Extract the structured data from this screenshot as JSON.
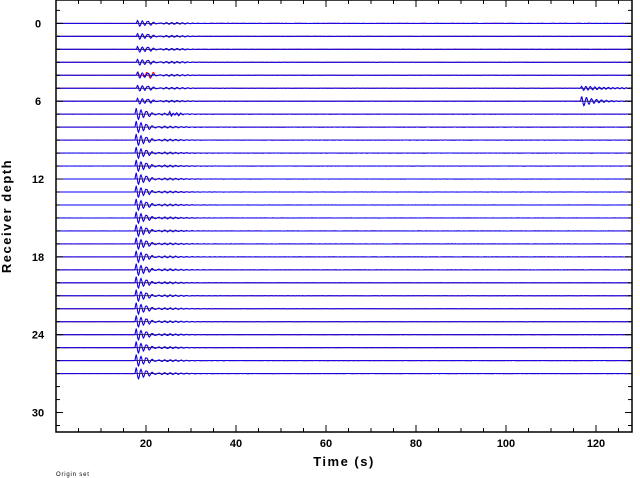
{
  "chart_data": {
    "type": "line",
    "xlabel": "Time (s)",
    "ylabel": "Receiver depth",
    "xlim": [
      0,
      128
    ],
    "ylim": [
      31.5,
      -1.8
    ],
    "x_ticks": [
      20,
      40,
      60,
      80,
      100,
      120
    ],
    "y_ticks": [
      0,
      6,
      12,
      18,
      24,
      30
    ],
    "footnote": "Origin set",
    "trace_depths": [
      0,
      1,
      2,
      3,
      4,
      5,
      6,
      7,
      8,
      9,
      10,
      11,
      12,
      13,
      14,
      15,
      16,
      17,
      18,
      19,
      20,
      21,
      22,
      23,
      24,
      25,
      26,
      27
    ],
    "arrival_time_s": 17.5,
    "series": [
      {
        "color": "#0000ff"
      },
      {
        "color": "#ff0000"
      }
    ],
    "grid": false
  }
}
